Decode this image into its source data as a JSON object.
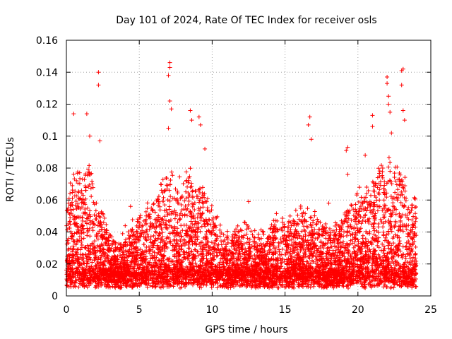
{
  "chart_data": {
    "type": "scatter",
    "title": "Day 101 of 2024, Rate Of TEC Index for receiver osls",
    "xlabel": "GPS time / hours",
    "ylabel": "ROTI / TECUs",
    "xlim": [
      0,
      25
    ],
    "ylim": [
      0,
      0.16
    ],
    "xticks": [
      0,
      5,
      10,
      15,
      20,
      25
    ],
    "yticks": [
      0,
      0.02,
      0.04,
      0.06,
      0.08,
      0.1,
      0.12,
      0.14,
      0.16
    ],
    "xtick_labels": [
      "0",
      "5",
      "10",
      "15",
      "20",
      "25"
    ],
    "ytick_labels": [
      "0",
      "0.02",
      "0.04",
      "0.06",
      "0.08",
      "0.1",
      "0.12",
      "0.14",
      "0.16"
    ],
    "grid": true,
    "marker": "plus",
    "series_color": "#ff0000",
    "series": [
      {
        "name": "ROTI",
        "x_range": [
          0,
          24
        ],
        "profile": [
          [
            0.0,
            0.055
          ],
          [
            0.5,
            0.08
          ],
          [
            1.0,
            0.075
          ],
          [
            1.5,
            0.085
          ],
          [
            2.0,
            0.065
          ],
          [
            2.5,
            0.05
          ],
          [
            3.0,
            0.04
          ],
          [
            3.5,
            0.035
          ],
          [
            4.0,
            0.04
          ],
          [
            4.5,
            0.045
          ],
          [
            5.0,
            0.05
          ],
          [
            5.5,
            0.055
          ],
          [
            6.0,
            0.06
          ],
          [
            6.5,
            0.07
          ],
          [
            7.0,
            0.08
          ],
          [
            7.5,
            0.07
          ],
          [
            8.0,
            0.075
          ],
          [
            8.5,
            0.08
          ],
          [
            9.0,
            0.075
          ],
          [
            9.5,
            0.065
          ],
          [
            10.0,
            0.055
          ],
          [
            10.5,
            0.045
          ],
          [
            11.0,
            0.04
          ],
          [
            11.5,
            0.04
          ],
          [
            12.0,
            0.045
          ],
          [
            12.5,
            0.045
          ],
          [
            13.0,
            0.04
          ],
          [
            13.5,
            0.04
          ],
          [
            14.0,
            0.045
          ],
          [
            14.5,
            0.05
          ],
          [
            15.0,
            0.05
          ],
          [
            15.5,
            0.05
          ],
          [
            16.0,
            0.055
          ],
          [
            16.5,
            0.055
          ],
          [
            17.0,
            0.05
          ],
          [
            17.5,
            0.045
          ],
          [
            18.0,
            0.045
          ],
          [
            18.5,
            0.045
          ],
          [
            19.0,
            0.05
          ],
          [
            19.5,
            0.06
          ],
          [
            20.0,
            0.065
          ],
          [
            20.5,
            0.07
          ],
          [
            21.0,
            0.075
          ],
          [
            21.5,
            0.085
          ],
          [
            22.0,
            0.09
          ],
          [
            22.5,
            0.085
          ],
          [
            23.0,
            0.08
          ],
          [
            23.5,
            0.07
          ],
          [
            24.0,
            0.06
          ]
        ],
        "baseline": 0.012,
        "density_per_hour": 260,
        "seed": 101,
        "outliers": [
          [
            0.5,
            0.114
          ],
          [
            1.4,
            0.114
          ],
          [
            1.6,
            0.1
          ],
          [
            2.2,
            0.14
          ],
          [
            2.2,
            0.132
          ],
          [
            2.3,
            0.097
          ],
          [
            7.1,
            0.146
          ],
          [
            7.1,
            0.143
          ],
          [
            7.0,
            0.138
          ],
          [
            7.1,
            0.122
          ],
          [
            7.2,
            0.117
          ],
          [
            7.0,
            0.105
          ],
          [
            8.5,
            0.116
          ],
          [
            8.6,
            0.11
          ],
          [
            9.1,
            0.112
          ],
          [
            9.2,
            0.107
          ],
          [
            9.5,
            0.092
          ],
          [
            16.7,
            0.112
          ],
          [
            16.6,
            0.107
          ],
          [
            16.8,
            0.098
          ],
          [
            19.3,
            0.093
          ],
          [
            19.2,
            0.091
          ],
          [
            19.3,
            0.076
          ],
          [
            20.5,
            0.088
          ],
          [
            21.0,
            0.113
          ],
          [
            21.0,
            0.106
          ],
          [
            22.0,
            0.137
          ],
          [
            22.0,
            0.133
          ],
          [
            22.1,
            0.125
          ],
          [
            22.1,
            0.12
          ],
          [
            22.2,
            0.115
          ],
          [
            22.3,
            0.102
          ],
          [
            23.0,
            0.141
          ],
          [
            23.1,
            0.142
          ],
          [
            23.0,
            0.132
          ],
          [
            23.1,
            0.116
          ],
          [
            23.2,
            0.11
          ],
          [
            4.4,
            0.056
          ],
          [
            12.5,
            0.059
          ],
          [
            18.0,
            0.058
          ]
        ]
      }
    ]
  }
}
